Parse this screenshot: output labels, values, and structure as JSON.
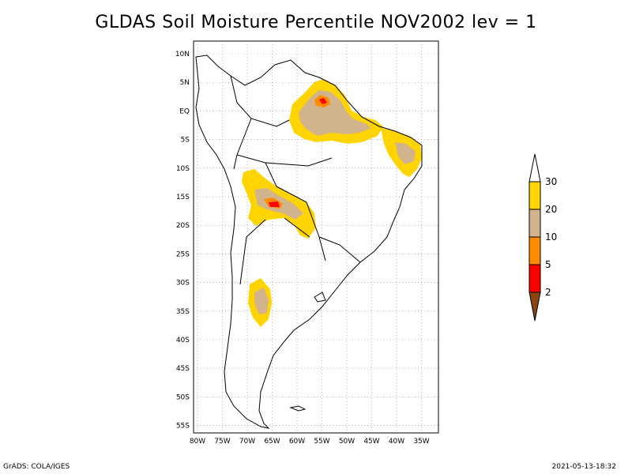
{
  "title": "GLDAS Soil Moisture Percentile NOV2002 lev = 1",
  "axes": {
    "lat_labels": [
      "10N",
      "5N",
      "EQ",
      "5S",
      "10S",
      "15S",
      "20S",
      "25S",
      "30S",
      "35S",
      "40S",
      "45S",
      "50S",
      "55S"
    ],
    "lon_labels": [
      "80W",
      "75W",
      "70W",
      "65W",
      "60W",
      "55W",
      "50W",
      "45W",
      "40W",
      "35W"
    ]
  },
  "colorbar": {
    "labels": [
      "30",
      "20",
      "10",
      "5",
      "2"
    ],
    "colors": {
      "above_30": "#ffffff",
      "20_30": "#ffd400",
      "10_20": "#d2b48c",
      "5_10": "#ff8c00",
      "2_5": "#ff0000",
      "below_2": "#8b4513"
    }
  },
  "footer": {
    "left": "GrADS: COLA/IGES",
    "right": "2021-05-13-18:32"
  }
}
